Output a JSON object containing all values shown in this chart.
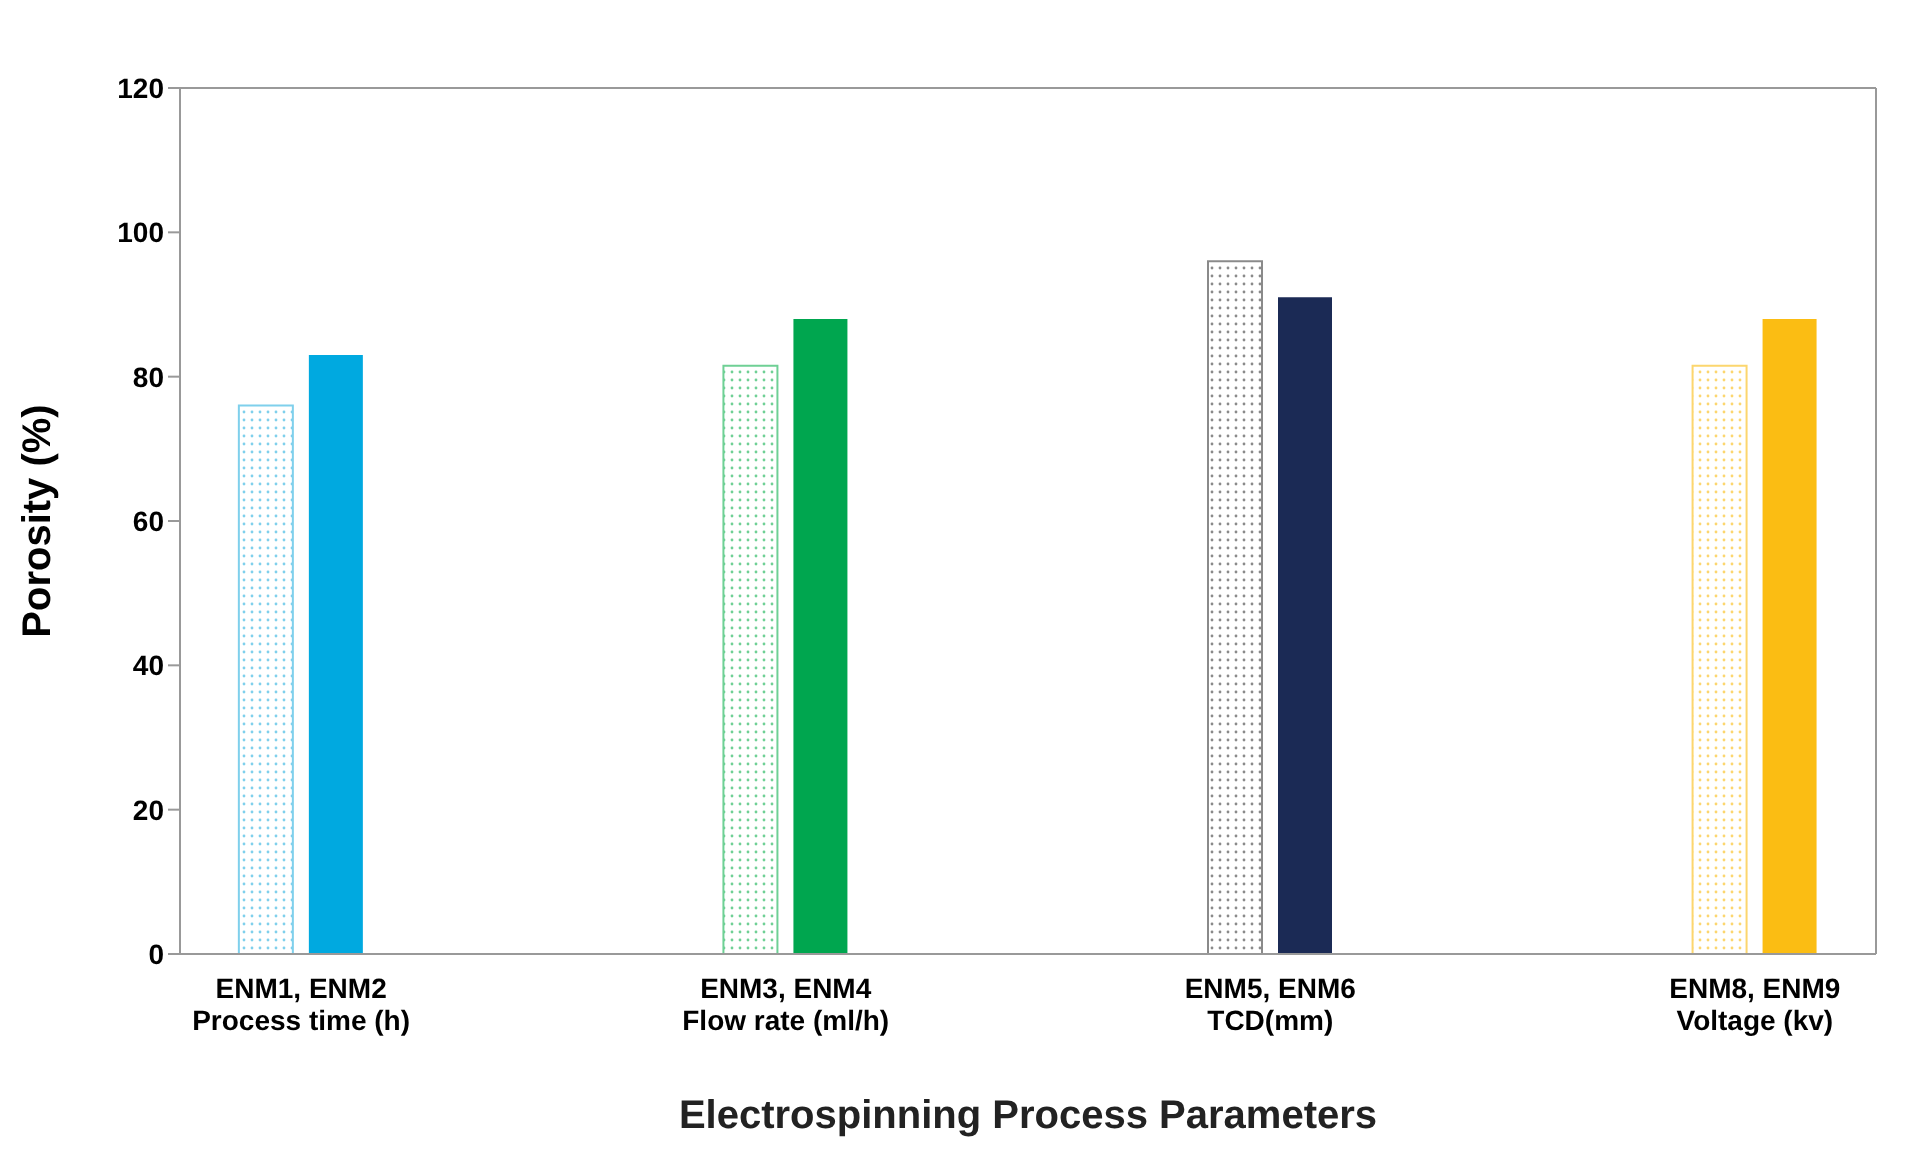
{
  "chart_data": {
    "type": "bar",
    "xlabel": "Electrospinning Process Parameters",
    "ylabel": "Porosity (%)",
    "categories": [
      "ENM1, ENM2\nProcess time (h)",
      "ENM3, ENM4\nFlow rate (ml/h)",
      "ENM5, ENM6\nTCD(mm)",
      "ENM8, ENM9\nVoltage (kv)"
    ],
    "series": [
      {
        "colors": [
          "#7fd0ec",
          "#6fd095",
          "#8a8a8a",
          "#fcd66e"
        ],
        "values": [
          76,
          81.5,
          96,
          81.5
        ]
      },
      {
        "colors": [
          "#00a9e0",
          "#00a64f",
          "#1b2a55",
          "#fbbd13"
        ],
        "values": [
          83,
          88,
          91,
          88
        ]
      }
    ],
    "ylim": [
      0,
      120
    ],
    "yticks": [
      0,
      20,
      40,
      60,
      80,
      100,
      120
    ]
  }
}
